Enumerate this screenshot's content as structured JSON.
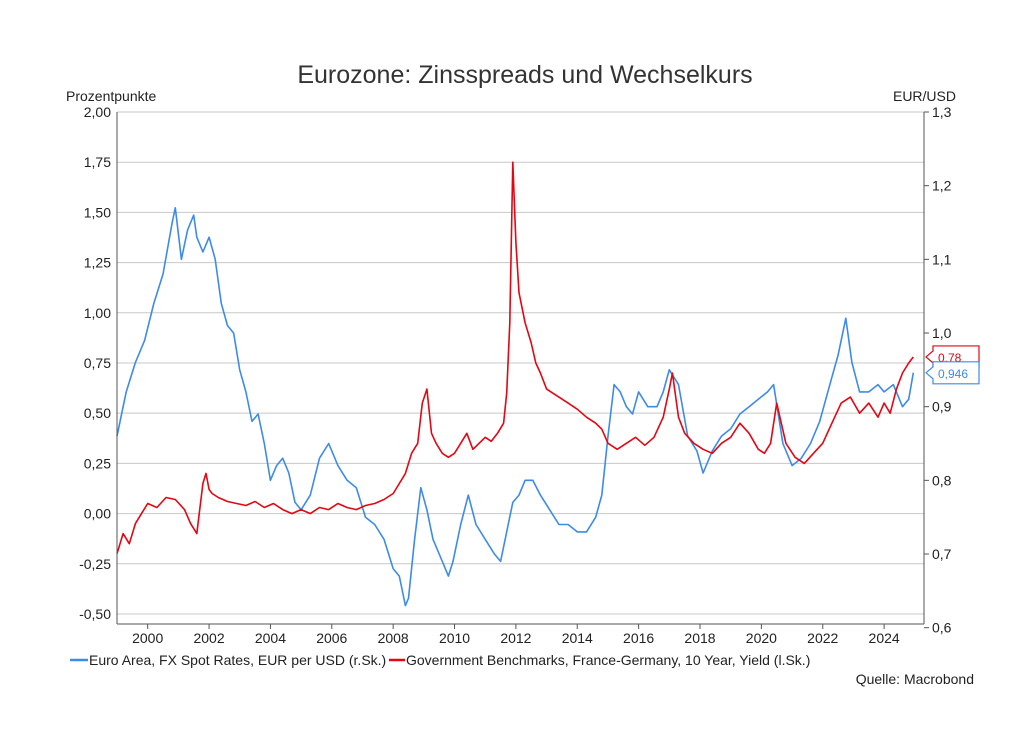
{
  "chart_data": {
    "type": "line",
    "title": "Eurozone: Zinsspreads und Wechselkurs",
    "ylabel_left": "Prozentpunkte",
    "ylabel_right": "EUR/USD",
    "xlim": [
      1999.0,
      2025.3
    ],
    "ylim_left": [
      -0.55,
      2.0
    ],
    "ylim_right": [
      0.605,
      1.3
    ],
    "x_ticks": [
      2000,
      2002,
      2004,
      2006,
      2008,
      2010,
      2012,
      2014,
      2016,
      2018,
      2020,
      2022,
      2024
    ],
    "x_tick_labels": [
      "2000",
      "2002",
      "2004",
      "2006",
      "2008",
      "2010",
      "2012",
      "2014",
      "2016",
      "2018",
      "2020",
      "2022",
      "2024"
    ],
    "y_left_ticks": [
      2.0,
      1.75,
      1.5,
      1.25,
      1.0,
      0.75,
      0.5,
      0.25,
      0.0,
      -0.25,
      -0.5
    ],
    "y_left_tick_labels": [
      "2,00",
      "1,75",
      "1,50",
      "1,25",
      "1,00",
      "0,75",
      "0,50",
      "0,25",
      "0,00",
      "-0,25",
      "-0,50"
    ],
    "y_right_ticks": [
      1.3,
      1.2,
      1.1,
      1.0,
      0.9,
      0.8,
      0.7,
      0.6
    ],
    "y_right_tick_labels": [
      "1,3",
      "1,2",
      "1,1",
      "1,0",
      "0,9",
      "0,8",
      "0,7",
      "0,6"
    ],
    "grid": true,
    "legend_position": "bottom",
    "series": [
      {
        "name": "Euro Area, FX Spot Rates, EUR per USD (r.Sk.)",
        "axis": "right",
        "color": "#3d8be8",
        "last_label": "0,946",
        "x": [
          1999.0,
          1999.3,
          1999.6,
          1999.9,
          2000.2,
          2000.5,
          2000.8,
          2000.9,
          2001.1,
          2001.3,
          2001.5,
          2001.6,
          2001.8,
          2002.0,
          2002.2,
          2002.4,
          2002.6,
          2002.8,
          2003.0,
          2003.2,
          2003.4,
          2003.6,
          2003.8,
          2004.0,
          2004.2,
          2004.4,
          2004.6,
          2004.8,
          2005.0,
          2005.3,
          2005.6,
          2005.9,
          2006.2,
          2006.5,
          2006.8,
          2007.1,
          2007.4,
          2007.7,
          2008.0,
          2008.2,
          2008.4,
          2008.5,
          2008.7,
          2008.9,
          2009.1,
          2009.3,
          2009.5,
          2009.8,
          2009.95,
          2010.2,
          2010.45,
          2010.7,
          2011.0,
          2011.3,
          2011.5,
          2011.75,
          2011.9,
          2012.1,
          2012.3,
          2012.55,
          2012.8,
          2013.1,
          2013.4,
          2013.7,
          2014.0,
          2014.3,
          2014.6,
          2014.8,
          2015.0,
          2015.2,
          2015.4,
          2015.6,
          2015.8,
          2016.0,
          2016.3,
          2016.6,
          2016.8,
          2017.0,
          2017.3,
          2017.6,
          2017.9,
          2018.1,
          2018.4,
          2018.7,
          2019.0,
          2019.3,
          2019.6,
          2019.9,
          2020.2,
          2020.4,
          2020.7,
          2021.0,
          2021.3,
          2021.6,
          2021.9,
          2022.1,
          2022.3,
          2022.5,
          2022.75,
          2022.95,
          2023.2,
          2023.5,
          2023.8,
          2024.0,
          2024.3,
          2024.6,
          2024.8,
          2024.95
        ],
        "y": [
          0.86,
          0.92,
          0.96,
          0.99,
          1.04,
          1.08,
          1.15,
          1.17,
          1.1,
          1.14,
          1.16,
          1.13,
          1.11,
          1.13,
          1.1,
          1.04,
          1.01,
          1.0,
          0.95,
          0.92,
          0.88,
          0.89,
          0.85,
          0.8,
          0.82,
          0.83,
          0.81,
          0.77,
          0.76,
          0.78,
          0.83,
          0.85,
          0.82,
          0.8,
          0.79,
          0.75,
          0.74,
          0.72,
          0.68,
          0.67,
          0.63,
          0.64,
          0.72,
          0.79,
          0.76,
          0.72,
          0.7,
          0.67,
          0.69,
          0.74,
          0.78,
          0.74,
          0.72,
          0.7,
          0.69,
          0.74,
          0.77,
          0.78,
          0.8,
          0.8,
          0.78,
          0.76,
          0.74,
          0.74,
          0.73,
          0.73,
          0.75,
          0.78,
          0.86,
          0.93,
          0.92,
          0.9,
          0.89,
          0.92,
          0.9,
          0.9,
          0.92,
          0.95,
          0.93,
          0.86,
          0.84,
          0.81,
          0.84,
          0.86,
          0.87,
          0.89,
          0.9,
          0.91,
          0.92,
          0.93,
          0.85,
          0.82,
          0.83,
          0.85,
          0.88,
          0.91,
          0.94,
          0.97,
          1.02,
          0.96,
          0.92,
          0.92,
          0.93,
          0.92,
          0.93,
          0.9,
          0.91,
          0.946
        ]
      },
      {
        "name": "Government Benchmarks, France-Germany, 10 Year, Yield (l.Sk.)",
        "axis": "left",
        "color": "#e30613",
        "last_label": "0,78",
        "x": [
          1999.0,
          1999.2,
          1999.4,
          1999.6,
          1999.8,
          2000.0,
          2000.3,
          2000.6,
          2000.9,
          2001.2,
          2001.4,
          2001.6,
          2001.8,
          2001.9,
          2002.0,
          2002.1,
          2002.3,
          2002.6,
          2002.9,
          2003.2,
          2003.5,
          2003.8,
          2004.1,
          2004.4,
          2004.7,
          2005.0,
          2005.3,
          2005.6,
          2005.9,
          2006.2,
          2006.5,
          2006.8,
          2007.1,
          2007.4,
          2007.7,
          2008.0,
          2008.2,
          2008.4,
          2008.6,
          2008.8,
          2008.95,
          2009.1,
          2009.25,
          2009.4,
          2009.6,
          2009.8,
          2010.0,
          2010.2,
          2010.4,
          2010.6,
          2010.8,
          2011.0,
          2011.2,
          2011.4,
          2011.6,
          2011.7,
          2011.8,
          2011.9,
          2012.0,
          2012.1,
          2012.3,
          2012.5,
          2012.65,
          2012.8,
          2013.0,
          2013.2,
          2013.4,
          2013.7,
          2014.0,
          2014.3,
          2014.6,
          2014.8,
          2015.0,
          2015.3,
          2015.6,
          2015.9,
          2016.2,
          2016.5,
          2016.8,
          2017.0,
          2017.1,
          2017.3,
          2017.5,
          2017.8,
          2018.1,
          2018.4,
          2018.7,
          2019.0,
          2019.3,
          2019.6,
          2019.9,
          2020.1,
          2020.3,
          2020.5,
          2020.8,
          2021.1,
          2021.4,
          2021.7,
          2022.0,
          2022.3,
          2022.6,
          2022.9,
          2023.2,
          2023.5,
          2023.8,
          2024.0,
          2024.2,
          2024.4,
          2024.6,
          2024.8,
          2024.95
        ],
        "y": [
          -0.2,
          -0.1,
          -0.15,
          -0.05,
          0.0,
          0.05,
          0.03,
          0.08,
          0.07,
          0.02,
          -0.05,
          -0.1,
          0.15,
          0.2,
          0.12,
          0.1,
          0.08,
          0.06,
          0.05,
          0.04,
          0.06,
          0.03,
          0.05,
          0.02,
          0.0,
          0.02,
          0.0,
          0.03,
          0.02,
          0.05,
          0.03,
          0.02,
          0.04,
          0.05,
          0.07,
          0.1,
          0.15,
          0.2,
          0.3,
          0.35,
          0.55,
          0.62,
          0.4,
          0.35,
          0.3,
          0.28,
          0.3,
          0.35,
          0.4,
          0.32,
          0.35,
          0.38,
          0.36,
          0.4,
          0.45,
          0.6,
          0.95,
          1.75,
          1.35,
          1.1,
          0.95,
          0.85,
          0.75,
          0.7,
          0.62,
          0.6,
          0.58,
          0.55,
          0.52,
          0.48,
          0.45,
          0.42,
          0.35,
          0.32,
          0.35,
          0.38,
          0.34,
          0.38,
          0.48,
          0.62,
          0.7,
          0.48,
          0.4,
          0.35,
          0.32,
          0.3,
          0.35,
          0.38,
          0.45,
          0.4,
          0.32,
          0.3,
          0.35,
          0.55,
          0.35,
          0.28,
          0.25,
          0.3,
          0.35,
          0.45,
          0.55,
          0.58,
          0.5,
          0.55,
          0.48,
          0.55,
          0.5,
          0.62,
          0.7,
          0.75,
          0.78
        ]
      }
    ]
  },
  "legend": {
    "fx_label": "Euro Area, FX Spot Rates, EUR per USD (r.Sk.)",
    "spread_label": "Government Benchmarks, France-Germany, 10 Year, Yield (l.Sk.)"
  },
  "source": "Quelle: Macrobond"
}
